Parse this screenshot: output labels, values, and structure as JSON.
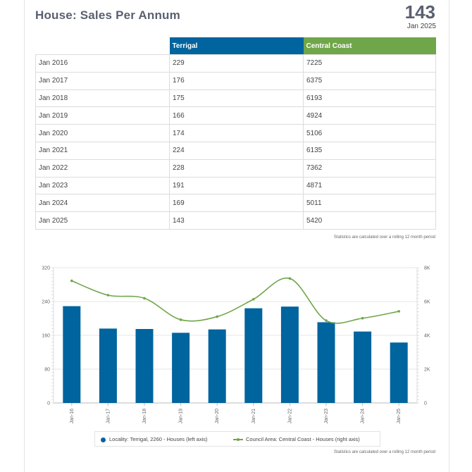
{
  "header": {
    "title": "House: Sales Per Annum",
    "kpi_value": "143",
    "kpi_date": "Jan 2025"
  },
  "table": {
    "columns": [
      "",
      "Terrigal",
      "Central Coast"
    ],
    "rows": [
      [
        "Jan 2016",
        "229",
        "7225"
      ],
      [
        "Jan 2017",
        "176",
        "6375"
      ],
      [
        "Jan 2018",
        "175",
        "6193"
      ],
      [
        "Jan 2019",
        "166",
        "4924"
      ],
      [
        "Jan 2020",
        "174",
        "5106"
      ],
      [
        "Jan 2021",
        "224",
        "6135"
      ],
      [
        "Jan 2022",
        "228",
        "7362"
      ],
      [
        "Jan 2023",
        "191",
        "4871"
      ],
      [
        "Jan 2024",
        "169",
        "5011"
      ],
      [
        "Jan 2025",
        "143",
        "5420"
      ]
    ],
    "note": "Statistics are calculated over a rolling 12 month period"
  },
  "chart_data": {
    "type": "bar",
    "categories": [
      "Jan-16",
      "Jan-17",
      "Jan-18",
      "Jan-19",
      "Jan-20",
      "Jan-21",
      "Jan-22",
      "Jan-23",
      "Jan-24",
      "Jan-25"
    ],
    "series": [
      {
        "name": "Locality: Terrigal, 2260 - Houses (left axis)",
        "type": "bar",
        "axis": "left",
        "color": "#00649e",
        "values": [
          229,
          176,
          175,
          166,
          174,
          224,
          228,
          191,
          169,
          143
        ]
      },
      {
        "name": "Council Area: Central Coast - Houses (right axis)",
        "type": "line",
        "axis": "right",
        "color": "#70a64a",
        "values": [
          7225,
          6375,
          6193,
          4924,
          5106,
          6135,
          7362,
          4871,
          5011,
          5420
        ]
      }
    ],
    "left_axis": {
      "ylim": [
        0,
        320
      ],
      "ticks": [
        "0",
        "80",
        "160",
        "240",
        "320"
      ]
    },
    "right_axis": {
      "ylim": [
        0,
        8000
      ],
      "ticks": [
        "0",
        "2K",
        "4K",
        "6K",
        "8K"
      ]
    },
    "legend_position": "bottom",
    "grid": true,
    "note": "Statistics are calculated over a rolling 12 month period"
  }
}
